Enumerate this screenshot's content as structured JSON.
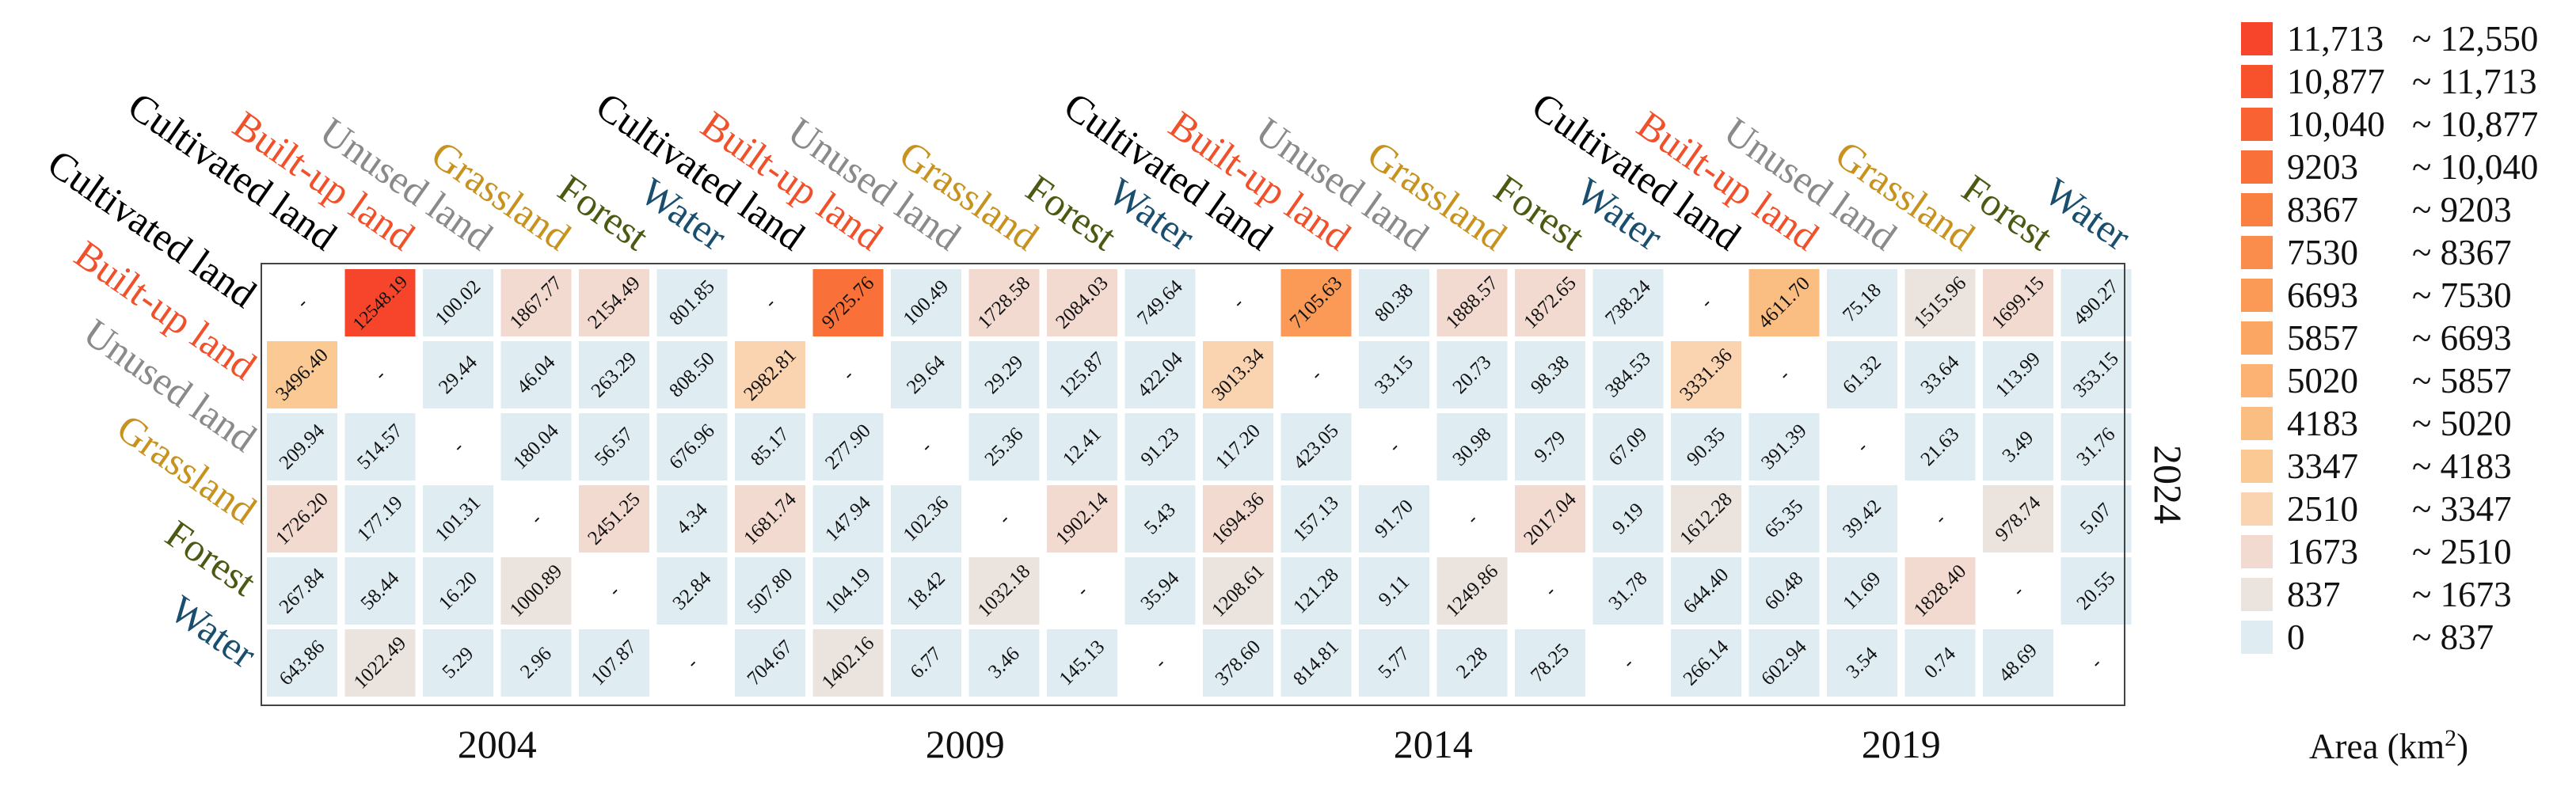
{
  "chart_data": {
    "type": "heatmap",
    "title": "",
    "right_label": "2024",
    "classes": [
      "Cultivated land",
      "Built-up land",
      "Unused land",
      "Grassland",
      "Forest",
      "Water"
    ],
    "class_colors": {
      "Cultivated land": "#000000",
      "Built-up land": "#f0502a",
      "Unused land": "#8a8a8a",
      "Grassland": "#c8921e",
      "Forest": "#4a5a12",
      "Water": "#1a4e6e"
    },
    "periods": [
      {
        "label": "2004",
        "matrix": [
          [
            "-",
            "12548.19",
            "100.02",
            "1867.77",
            "2154.49",
            "801.85"
          ],
          [
            "3496.40",
            "-",
            "29.44",
            "46.04",
            "263.29",
            "808.50"
          ],
          [
            "209.94",
            "514.57",
            "-",
            "180.04",
            "56.57",
            "676.96"
          ],
          [
            "1726.20",
            "177.19",
            "101.31",
            "-",
            "2451.25",
            "4.34"
          ],
          [
            "267.84",
            "58.44",
            "16.20",
            "1000.89",
            "-",
            "32.84"
          ],
          [
            "643.86",
            "1022.49",
            "5.29",
            "2.96",
            "107.87",
            "-"
          ]
        ]
      },
      {
        "label": "2009",
        "matrix": [
          [
            "-",
            "9725.76",
            "100.49",
            "1728.58",
            "2084.03",
            "749.64"
          ],
          [
            "2982.81",
            "-",
            "29.64",
            "29.29",
            "125.87",
            "422.04"
          ],
          [
            "85.17",
            "277.90",
            "-",
            "25.36",
            "12.41",
            "91.23"
          ],
          [
            "1681.74",
            "147.94",
            "102.36",
            "-",
            "1902.14",
            "5.43"
          ],
          [
            "507.80",
            "104.19",
            "18.42",
            "1032.18",
            "-",
            "35.94"
          ],
          [
            "704.67",
            "1402.16",
            "6.77",
            "3.46",
            "145.13",
            "-"
          ]
        ]
      },
      {
        "label": "2014",
        "matrix": [
          [
            "-",
            "7105.63",
            "80.38",
            "1888.57",
            "1872.65",
            "738.24"
          ],
          [
            "3013.34",
            "-",
            "33.15",
            "20.73",
            "98.38",
            "384.53"
          ],
          [
            "117.20",
            "423.05",
            "-",
            "30.98",
            "9.79",
            "67.09"
          ],
          [
            "1694.36",
            "157.13",
            "91.70",
            "-",
            "2017.04",
            "9.19"
          ],
          [
            "1208.61",
            "121.28",
            "9.11",
            "1249.86",
            "-",
            "31.78"
          ],
          [
            "378.60",
            "814.81",
            "5.77",
            "2.28",
            "78.25",
            "-"
          ]
        ]
      },
      {
        "label": "2019",
        "matrix": [
          [
            "-",
            "4611.70",
            "75.18",
            "1515.96",
            "1699.15",
            "490.27"
          ],
          [
            "3331.36",
            "-",
            "61.32",
            "33.64",
            "113.99",
            "353.15"
          ],
          [
            "90.35",
            "391.39",
            "-",
            "21.63",
            "3.49",
            "31.76"
          ],
          [
            "1612.28",
            "65.35",
            "39.42",
            "-",
            "978.74",
            "5.07"
          ],
          [
            "644.40",
            "60.48",
            "11.69",
            "1828.40",
            "-",
            "20.55"
          ],
          [
            "266.14",
            "602.94",
            "3.54",
            "0.74",
            "48.69",
            "-"
          ]
        ]
      }
    ],
    "legend": {
      "title_prefix": "Area (km",
      "title_sup": "2",
      "title_suffix": ")",
      "entries": [
        {
          "low": "11,713",
          "high": "12,550",
          "min": 11713,
          "color": "#f6452a"
        },
        {
          "low": "10,877",
          "high": "11,713",
          "min": 10877,
          "color": "#f8522d"
        },
        {
          "low": "10,040",
          "high": "10,877",
          "min": 10040,
          "color": "#f96232"
        },
        {
          "low": "9203",
          "high": "10,040",
          "min": 9203,
          "color": "#f97138"
        },
        {
          "low": "8367",
          "high": "9203",
          "min": 8367,
          "color": "#f98040"
        },
        {
          "low": "7530",
          "high": "8367",
          "min": 7530,
          "color": "#fa8d4b"
        },
        {
          "low": "6693",
          "high": "7530",
          "min": 6693,
          "color": "#fa9a56"
        },
        {
          "low": "5857",
          "high": "6693",
          "min": 5857,
          "color": "#fba663"
        },
        {
          "low": "5020",
          "high": "5857",
          "min": 5020,
          "color": "#fbb272"
        },
        {
          "low": "4183",
          "high": "5020",
          "min": 4183,
          "color": "#fbbe82"
        },
        {
          "low": "3347",
          "high": "4183",
          "min": 3347,
          "color": "#fbc994"
        },
        {
          "low": "2510",
          "high": "3347",
          "min": 2510,
          "color": "#fad3b1"
        },
        {
          "low": "1673",
          "high": "2510",
          "min": 1673,
          "color": "#f2dad0"
        },
        {
          "low": "837",
          "high": "1673",
          "min": 837,
          "color": "#ebe3dd"
        },
        {
          "low": "0",
          "high": "837",
          "min": 0,
          "color": "#dfecf1"
        }
      ]
    }
  }
}
